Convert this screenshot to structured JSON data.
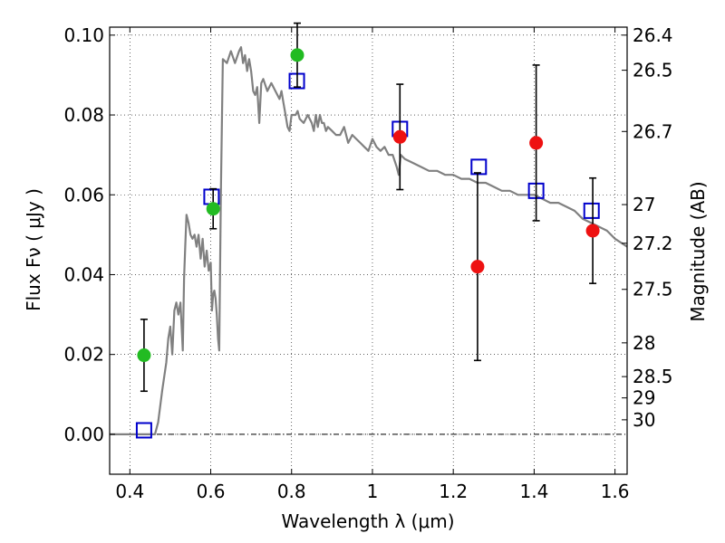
{
  "chart_data": {
    "type": "scatter",
    "x_label": "Wavelength  λ (μm)",
    "y_label": "Flux  Fν  ( μJy )",
    "y2_label": "Magnitude (AB)",
    "xlim": [
      0.35,
      1.63
    ],
    "ylim": [
      -0.01,
      0.102
    ],
    "grid": true,
    "x_ticks": [
      {
        "value": 0.4,
        "label": "0.4"
      },
      {
        "value": 0.6,
        "label": "0.6"
      },
      {
        "value": 0.8,
        "label": "0.8"
      },
      {
        "value": 1.0,
        "label": "1"
      },
      {
        "value": 1.2,
        "label": "1.2"
      },
      {
        "value": 1.4,
        "label": "1.4"
      },
      {
        "value": 1.6,
        "label": "1.6"
      }
    ],
    "y_ticks": [
      {
        "value": 0.0,
        "label": "0.00"
      },
      {
        "value": 0.02,
        "label": "0.02"
      },
      {
        "value": 0.04,
        "label": "0.04"
      },
      {
        "value": 0.06,
        "label": "0.06"
      },
      {
        "value": 0.08,
        "label": "0.08"
      },
      {
        "value": 0.1,
        "label": "0.10"
      }
    ],
    "mag_ticks": [
      {
        "value": 26.4,
        "label": "26.4"
      },
      {
        "value": 26.5,
        "label": "26.5"
      },
      {
        "value": 26.7,
        "label": "26.7"
      },
      {
        "value": 27.0,
        "label": "27"
      },
      {
        "value": 27.2,
        "label": "27.2"
      },
      {
        "value": 27.5,
        "label": "27.5"
      },
      {
        "value": 28.0,
        "label": "28"
      },
      {
        "value": 28.5,
        "label": "28.5"
      },
      {
        "value": 29.0,
        "label": "29"
      },
      {
        "value": 30.0,
        "label": "30"
      }
    ],
    "series": [
      {
        "kind": "line",
        "color": "#808080",
        "x": [
          0.35,
          0.44,
          0.455,
          0.462,
          0.47,
          0.48,
          0.49,
          0.495,
          0.5,
          0.505,
          0.51,
          0.515,
          0.52,
          0.525,
          0.528,
          0.531,
          0.534,
          0.537,
          0.54,
          0.545,
          0.55,
          0.555,
          0.56,
          0.565,
          0.57,
          0.575,
          0.58,
          0.585,
          0.59,
          0.595,
          0.6,
          0.603,
          0.606,
          0.609,
          0.612,
          0.615,
          0.618,
          0.621,
          0.625,
          0.63,
          0.64,
          0.65,
          0.66,
          0.67,
          0.675,
          0.68,
          0.685,
          0.69,
          0.695,
          0.7,
          0.705,
          0.71,
          0.715,
          0.72,
          0.725,
          0.73,
          0.74,
          0.75,
          0.76,
          0.77,
          0.775,
          0.78,
          0.785,
          0.79,
          0.795,
          0.8,
          0.805,
          0.81,
          0.815,
          0.82,
          0.83,
          0.84,
          0.85,
          0.855,
          0.86,
          0.865,
          0.87,
          0.875,
          0.88,
          0.885,
          0.89,
          0.9,
          0.91,
          0.92,
          0.93,
          0.94,
          0.95,
          0.96,
          0.97,
          0.98,
          0.99,
          1.0,
          1.01,
          1.02,
          1.03,
          1.04,
          1.05,
          1.06,
          1.065,
          1.07,
          1.08,
          1.1,
          1.12,
          1.14,
          1.16,
          1.18,
          1.2,
          1.22,
          1.24,
          1.26,
          1.28,
          1.3,
          1.32,
          1.34,
          1.36,
          1.38,
          1.4,
          1.42,
          1.44,
          1.46,
          1.48,
          1.5,
          1.52,
          1.54,
          1.56,
          1.58,
          1.6,
          1.63
        ],
        "y": [
          0.0,
          0.0,
          0.0,
          0.0,
          0.003,
          0.011,
          0.018,
          0.024,
          0.027,
          0.02,
          0.031,
          0.033,
          0.03,
          0.033,
          0.027,
          0.021,
          0.039,
          0.047,
          0.055,
          0.053,
          0.05,
          0.049,
          0.05,
          0.047,
          0.05,
          0.044,
          0.049,
          0.042,
          0.046,
          0.041,
          0.043,
          0.031,
          0.035,
          0.036,
          0.034,
          0.03,
          0.024,
          0.021,
          0.06,
          0.094,
          0.093,
          0.096,
          0.093,
          0.096,
          0.097,
          0.093,
          0.095,
          0.091,
          0.094,
          0.091,
          0.086,
          0.085,
          0.087,
          0.078,
          0.088,
          0.089,
          0.086,
          0.088,
          0.086,
          0.084,
          0.086,
          0.083,
          0.08,
          0.077,
          0.076,
          0.08,
          0.08,
          0.08,
          0.081,
          0.079,
          0.078,
          0.08,
          0.078,
          0.076,
          0.08,
          0.077,
          0.08,
          0.078,
          0.078,
          0.076,
          0.077,
          0.076,
          0.075,
          0.075,
          0.077,
          0.073,
          0.075,
          0.074,
          0.073,
          0.072,
          0.071,
          0.074,
          0.072,
          0.071,
          0.072,
          0.07,
          0.07,
          0.067,
          0.065,
          0.07,
          0.069,
          0.068,
          0.067,
          0.066,
          0.066,
          0.065,
          0.065,
          0.064,
          0.064,
          0.063,
          0.063,
          0.062,
          0.061,
          0.061,
          0.06,
          0.06,
          0.06,
          0.059,
          0.058,
          0.058,
          0.057,
          0.056,
          0.054,
          0.053,
          0.052,
          0.051,
          0.049,
          0.047
        ]
      },
      {
        "kind": "markers",
        "marker": "square",
        "color": "#0000cc",
        "x": [
          0.435,
          0.602,
          0.813,
          1.068,
          1.263,
          1.405,
          1.542
        ],
        "y": [
          0.001,
          0.0595,
          0.0885,
          0.0765,
          0.067,
          0.061,
          0.056
        ]
      },
      {
        "kind": "markers",
        "marker": "circle",
        "color": "#22bb22",
        "x": [
          0.435,
          0.606,
          0.814
        ],
        "y": [
          0.0198,
          0.0565,
          0.095
        ],
        "yerr": [
          0.009,
          0.005,
          0.008
        ]
      },
      {
        "kind": "markers",
        "marker": "circle",
        "color": "#ee1111",
        "x": [
          1.068,
          1.26,
          1.405,
          1.545
        ],
        "y": [
          0.0745,
          0.042,
          0.073,
          0.051
        ],
        "yerr": [
          0.0132,
          0.0235,
          0.0195,
          0.0132
        ]
      }
    ]
  }
}
